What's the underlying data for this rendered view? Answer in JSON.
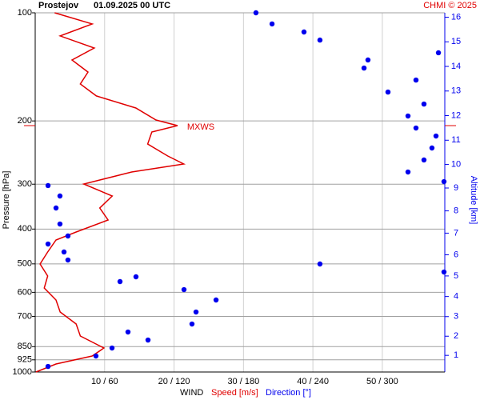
{
  "chart_data": {
    "type": "line",
    "title": "Prostejov",
    "subtitle": "01.09.2025 00 UTC",
    "credit": "CHMI © 2025",
    "ylabel": "Pressure [hPa]",
    "y2label": "Altitude [km]",
    "xlabel": "WIND",
    "log_y": true,
    "grid": true,
    "ylim": [
      1000,
      100
    ],
    "yticks": [
      100,
      200,
      300,
      400,
      500,
      600,
      700,
      850,
      925,
      1000
    ],
    "y2ticks": [
      1,
      2,
      3,
      4,
      5,
      6,
      7,
      8,
      9,
      10,
      11,
      12,
      13,
      14,
      15,
      16
    ],
    "y2color": "#0000ee",
    "xlim": [
      0,
      59
    ],
    "xticks": [
      10,
      20,
      30,
      40,
      50
    ],
    "x2lim": [
      0,
      354
    ],
    "x2ticks": [
      60,
      120,
      180,
      240,
      300
    ],
    "tick_separator": " / ",
    "series": [
      {
        "name": "Speed [m/s]",
        "color": "#e00000",
        "pressure": [
          100,
          107.4,
          116.0,
          125.3,
          135.3,
          146.2,
          157.8,
          170.4,
          184.1,
          198.8,
          206.1,
          214.7,
          231.9,
          250.4,
          263.6,
          277.5,
          299.7,
          323.6,
          349.5,
          377.4,
          407.6,
          429.0,
          463.3,
          500.4,
          540.4,
          583.6,
          630.3,
          680.8,
          735.2,
          794.0,
          857.6,
          902.7,
          950.0,
          1000
        ],
        "values": [
          2.8,
          8.2,
          3.6,
          8.5,
          5.3,
          7.6,
          6.5,
          8.8,
          14.5,
          17.4,
          20.5,
          16.8,
          16.2,
          19.1,
          21.4,
          13.9,
          7.0,
          11.1,
          9.3,
          10.5,
          5.9,
          3.0,
          1.8,
          0.7,
          1.8,
          1.3,
          3.0,
          3.6,
          5.9,
          6.5,
          9.9,
          8.2,
          3.0,
          0.1
        ]
      },
      {
        "name": "Direction [°]",
        "color": "#0000ee",
        "axis": "x2",
        "pressure": [
          100,
          107.4,
          113.1,
          119.1,
          129.2,
          135.3,
          142.5,
          153.9,
          166.2,
          179.5,
          193.8,
          209.3,
          220.3,
          237.9,
          256.9,
          277.5,
          295.1,
          302.7,
          323.6,
          349.5,
          387.3,
          418.2,
          440.3,
          463.3,
          487.8,
          500.4,
          526.8,
          543.2,
          560.2,
          589.7,
          630.3,
          680.8,
          735.2,
          774.0,
          814.8,
          857.6,
          902.7,
          965.0
        ],
        "values": [
          190.8,
          204.7,
          232.3,
          246.1,
          348.5,
          287.6,
          284.2,
          329.1,
          304.9,
          336.0,
          322.2,
          329.1,
          346.4,
          342.9,
          336.0,
          322.2,
          353.3,
          11.1,
          21.4,
          18.0,
          21.4,
          28.3,
          11.1,
          24.9,
          28.3,
          246.1,
          353.3,
          87.1,
          73.3,
          128.6,
          156.3,
          139.0,
          135.5,
          80.2,
          97.5,
          66.4,
          52.5,
          11.1
        ]
      }
    ],
    "annotation": {
      "text": "MXWS",
      "pressure": 206.1
    }
  }
}
